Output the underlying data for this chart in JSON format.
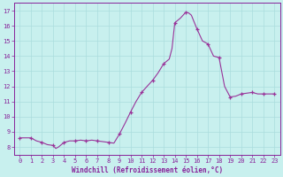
{
  "title": "",
  "xlabel": "Windchill (Refroidissement éolien,°C)",
  "ylabel": "",
  "bg_color": "#c8f0ee",
  "grid_color": "#aadddd",
  "line_color": "#993399",
  "marker_color": "#993399",
  "xlim": [
    -0.5,
    23.5
  ],
  "ylim": [
    7.5,
    17.5
  ],
  "yticks": [
    8,
    9,
    10,
    11,
    12,
    13,
    14,
    15,
    16,
    17
  ],
  "xticks": [
    0,
    1,
    2,
    3,
    4,
    5,
    6,
    7,
    8,
    9,
    10,
    11,
    12,
    13,
    14,
    15,
    16,
    17,
    18,
    19,
    20,
    21,
    22,
    23
  ],
  "x": [
    0,
    0.5,
    1,
    1.5,
    2,
    2.5,
    3,
    3.25,
    3.5,
    4,
    4.5,
    5,
    5.5,
    6,
    6.5,
    7,
    7.5,
    8,
    8.5,
    9,
    9.5,
    10,
    10.5,
    11,
    11.5,
    12,
    12.5,
    13,
    13.25,
    13.5,
    13.75,
    14,
    14.5,
    15,
    15.25,
    15.5,
    16,
    16.5,
    17,
    17.5,
    18,
    18.5,
    19,
    19.5,
    20,
    20.5,
    21,
    21.5,
    22,
    22.5,
    23
  ],
  "y": [
    8.6,
    8.6,
    8.6,
    8.4,
    8.3,
    8.15,
    8.1,
    7.9,
    8.0,
    8.3,
    8.4,
    8.4,
    8.45,
    8.4,
    8.45,
    8.4,
    8.35,
    8.3,
    8.25,
    8.85,
    9.55,
    10.3,
    11.0,
    11.6,
    12.0,
    12.4,
    12.9,
    13.5,
    13.65,
    13.8,
    14.5,
    16.2,
    16.5,
    16.9,
    16.85,
    16.7,
    15.8,
    15.0,
    14.8,
    14.0,
    13.9,
    12.0,
    11.3,
    11.35,
    11.5,
    11.55,
    11.6,
    11.5,
    11.5,
    11.5,
    11.5
  ],
  "marker_x": [
    0,
    1,
    2,
    3,
    4,
    5,
    6,
    7,
    8,
    9,
    10,
    11,
    12,
    13,
    14,
    15,
    16,
    17,
    18,
    19,
    20,
    21,
    22,
    23
  ],
  "marker_y": [
    8.6,
    8.6,
    8.3,
    8.1,
    8.3,
    8.4,
    8.4,
    8.4,
    8.3,
    8.85,
    10.3,
    11.6,
    12.4,
    13.5,
    16.2,
    16.9,
    15.8,
    14.8,
    13.9,
    11.3,
    11.5,
    11.6,
    11.5,
    11.5
  ],
  "font_color": "#882299",
  "tick_color": "#882299",
  "border_color": "#882299",
  "xlabel_fontsize": 5.5,
  "tick_fontsize": 5.0
}
